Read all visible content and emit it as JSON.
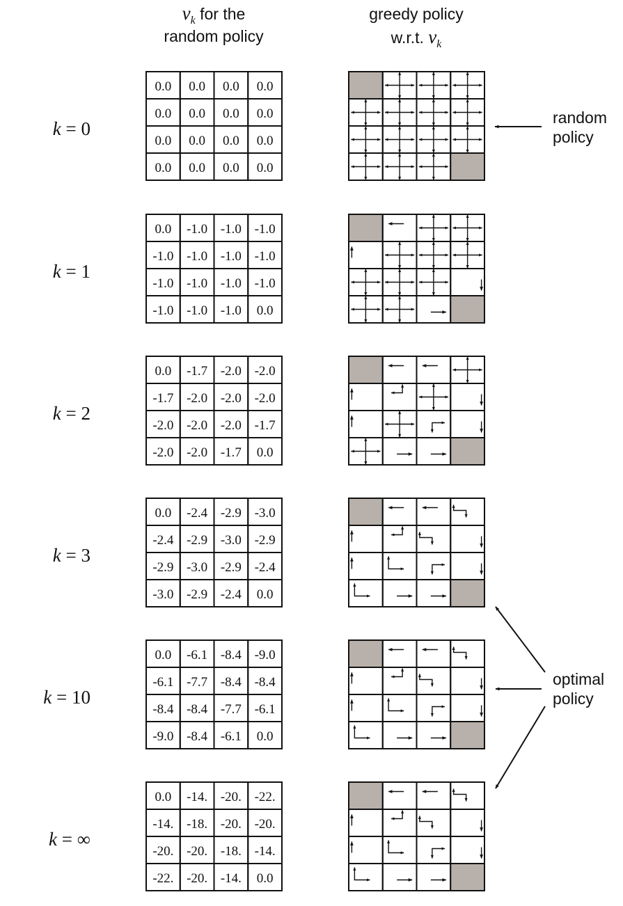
{
  "headers": {
    "values_col": {
      "math": "v",
      "sub": "k",
      "line1_rest": " for the",
      "line2": "random policy"
    },
    "policy_col": {
      "line1": "greedy policy",
      "line2_prefix": "w.r.t. ",
      "math": "v",
      "sub": "k"
    }
  },
  "side_labels": {
    "random": {
      "line1": "random",
      "line2": "policy"
    },
    "optimal": {
      "line1": "optimal",
      "line2": "policy"
    }
  },
  "terminal_cells": [
    [
      0,
      0
    ],
    [
      3,
      3
    ]
  ],
  "colors": {
    "terminal": "#b8b0aa",
    "ink": "#111111"
  },
  "rows": [
    {
      "k_var": "k",
      "k_eq": " = ",
      "k_value": "0",
      "values": [
        [
          "0.0",
          "0.0",
          "0.0",
          "0.0"
        ],
        [
          "0.0",
          "0.0",
          "0.0",
          "0.0"
        ],
        [
          "0.0",
          "0.0",
          "0.0",
          "0.0"
        ],
        [
          "0.0",
          "0.0",
          "0.0",
          "0.0"
        ]
      ],
      "policy": [
        [
          "T",
          "NESW",
          "NESW",
          "NESW"
        ],
        [
          "NESW",
          "NESW",
          "NESW",
          "NESW"
        ],
        [
          "NESW",
          "NESW",
          "NESW",
          "NESW"
        ],
        [
          "NESW",
          "NESW",
          "NESW",
          "T"
        ]
      ]
    },
    {
      "k_var": "k",
      "k_eq": " = ",
      "k_value": "1",
      "values": [
        [
          "0.0",
          "-1.0",
          "-1.0",
          "-1.0"
        ],
        [
          "-1.0",
          "-1.0",
          "-1.0",
          "-1.0"
        ],
        [
          "-1.0",
          "-1.0",
          "-1.0",
          "-1.0"
        ],
        [
          "-1.0",
          "-1.0",
          "-1.0",
          "0.0"
        ]
      ],
      "policy": [
        [
          "T",
          "W",
          "NESW",
          "NESW"
        ],
        [
          "N",
          "NESW",
          "NESW",
          "NESW"
        ],
        [
          "NESW",
          "NESW",
          "NESW",
          "S"
        ],
        [
          "NESW",
          "NESW",
          "E",
          "T"
        ]
      ]
    },
    {
      "k_var": "k",
      "k_eq": " = ",
      "k_value": "2",
      "values": [
        [
          "0.0",
          "-1.7",
          "-2.0",
          "-2.0"
        ],
        [
          "-1.7",
          "-2.0",
          "-2.0",
          "-2.0"
        ],
        [
          "-2.0",
          "-2.0",
          "-2.0",
          "-1.7"
        ],
        [
          "-2.0",
          "-2.0",
          "-1.7",
          "0.0"
        ]
      ],
      "policy": [
        [
          "T",
          "W",
          "W",
          "NESW"
        ],
        [
          "N",
          "NW",
          "NESW",
          "S"
        ],
        [
          "N",
          "NESW",
          "ES",
          "S"
        ],
        [
          "NESW",
          "E",
          "E",
          "T"
        ]
      ]
    },
    {
      "k_var": "k",
      "k_eq": " = ",
      "k_value": "3",
      "values": [
        [
          "0.0",
          "-2.4",
          "-2.9",
          "-3.0"
        ],
        [
          "-2.4",
          "-2.9",
          "-3.0",
          "-2.9"
        ],
        [
          "-2.9",
          "-3.0",
          "-2.9",
          "-2.4"
        ],
        [
          "-3.0",
          "-2.9",
          "-2.4",
          "0.0"
        ]
      ],
      "policy": [
        [
          "T",
          "W",
          "W",
          "WS"
        ],
        [
          "N",
          "NW",
          "WS",
          "S"
        ],
        [
          "N",
          "NE",
          "ES",
          "S"
        ],
        [
          "NE",
          "E",
          "E",
          "T"
        ]
      ]
    },
    {
      "k_var": "k",
      "k_eq": " = ",
      "k_value": "10",
      "values": [
        [
          "0.0",
          "-6.1",
          "-8.4",
          "-9.0"
        ],
        [
          "-6.1",
          "-7.7",
          "-8.4",
          "-8.4"
        ],
        [
          "-8.4",
          "-8.4",
          "-7.7",
          "-6.1"
        ],
        [
          "-9.0",
          "-8.4",
          "-6.1",
          "0.0"
        ]
      ],
      "policy": [
        [
          "T",
          "W",
          "W",
          "WS"
        ],
        [
          "N",
          "NW",
          "WS",
          "S"
        ],
        [
          "N",
          "NE",
          "ES",
          "S"
        ],
        [
          "NE",
          "E",
          "E",
          "T"
        ]
      ]
    },
    {
      "k_var": "k",
      "k_eq": " = ",
      "k_value": "∞",
      "values": [
        [
          "0.0",
          "-14.",
          "-20.",
          "-22."
        ],
        [
          "-14.",
          "-18.",
          "-20.",
          "-20."
        ],
        [
          "-20.",
          "-20.",
          "-18.",
          "-14."
        ],
        [
          "-22.",
          "-20.",
          "-14.",
          "0.0"
        ]
      ],
      "policy": [
        [
          "T",
          "W",
          "W",
          "WS"
        ],
        [
          "N",
          "NW",
          "WS",
          "S"
        ],
        [
          "N",
          "NE",
          "ES",
          "S"
        ],
        [
          "NE",
          "E",
          "E",
          "T"
        ]
      ]
    }
  ]
}
